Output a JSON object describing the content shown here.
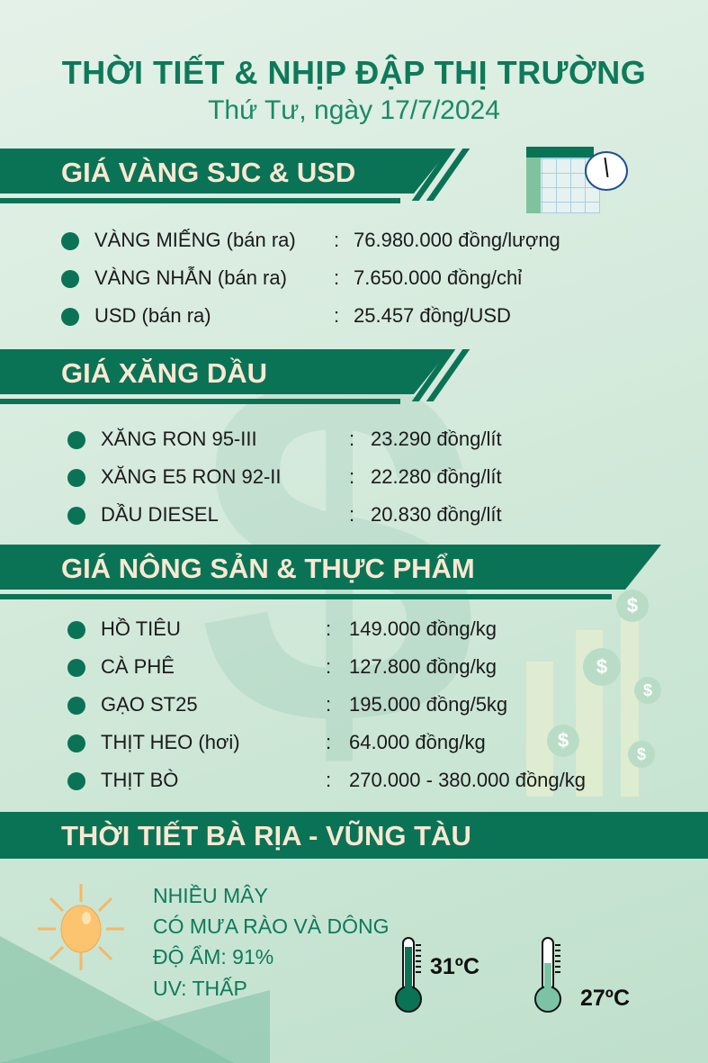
{
  "header": {
    "title": "THỜI TIẾT & NHỊP ĐẬP THỊ TRƯỜNG",
    "date": "Thứ Tư, ngày 17/7/2024"
  },
  "sections": {
    "gold": {
      "title": "GIÁ VÀNG SJC & USD",
      "items": [
        {
          "label": "VÀNG MIẾNG (bán ra)",
          "value": "76.980.000 đồng/lượng"
        },
        {
          "label": "VÀNG NHẪN (bán ra)",
          "value": "7.650.000 đồng/chỉ"
        },
        {
          "label": "USD (bán ra)",
          "value": "25.457 đồng/USD"
        }
      ]
    },
    "fuel": {
      "title": "GIÁ XĂNG DẦU",
      "items": [
        {
          "label": "XĂNG RON 95-III",
          "value": "23.290 đồng/lít"
        },
        {
          "label": "XĂNG E5 RON 92-II",
          "value": "22.280 đồng/lít"
        },
        {
          "label": "DẦU DIESEL",
          "value": "20.830 đồng/lít"
        }
      ]
    },
    "food": {
      "title": "GIÁ NÔNG SẢN & THỰC PHẨM",
      "items": [
        {
          "label": "HỒ TIÊU",
          "value": "149.000 đồng/kg"
        },
        {
          "label": "CÀ PHÊ",
          "value": "127.800 đồng/kg"
        },
        {
          "label": "GẠO ST25",
          "value": "195.000 đồng/5kg"
        },
        {
          "label": "THỊT HEO (hơi)",
          "value": "64.000 đồng/kg"
        },
        {
          "label": "THỊT BÒ",
          "value": "270.000 - 380.000 đồng/kg"
        }
      ]
    },
    "weather": {
      "title": "THỜI TIẾT BÀ RỊA - VŨNG TÀU",
      "lines": [
        "NHIỀU MÂY",
        "CÓ MƯA RÀO VÀ DÔNG",
        "ĐỘ ẨM: 91%",
        "UV: THẤP"
      ],
      "high": "31ºC",
      "low": "27ºC"
    }
  },
  "colon": ":",
  "icons": {
    "sun": "sun-icon",
    "thermometer": "thermometer-icon",
    "calendar": "calendar-clock-icon",
    "dollar": "dollar-icon"
  },
  "colors": {
    "brand": "#0a7356",
    "banner_text": "#fbe8d2",
    "title": "#0e7a5a"
  }
}
